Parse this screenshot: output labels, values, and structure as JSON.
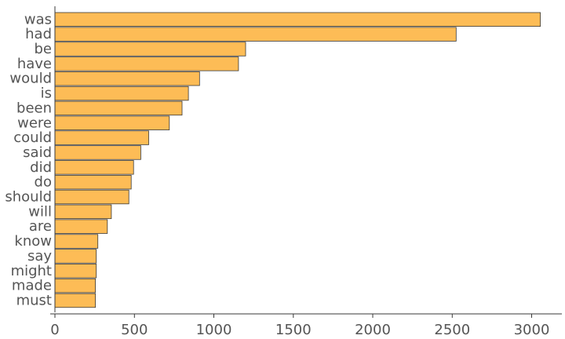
{
  "chart_data": {
    "type": "bar",
    "orientation": "horizontal",
    "title": "",
    "xlabel": "",
    "ylabel": "",
    "categories": [
      "was",
      "had",
      "be",
      "have",
      "would",
      "is",
      "been",
      "were",
      "could",
      "said",
      "did",
      "do",
      "should",
      "will",
      "are",
      "know",
      "say",
      "might",
      "made",
      "must"
    ],
    "values": [
      3055,
      2525,
      1200,
      1155,
      910,
      840,
      800,
      720,
      590,
      540,
      495,
      480,
      465,
      355,
      330,
      270,
      260,
      260,
      255,
      255
    ],
    "xlim": [
      0,
      3200
    ],
    "xticks": [
      "0",
      "500",
      "1000",
      "1500",
      "2000",
      "2500",
      "3000"
    ],
    "grid": false,
    "legend": "none",
    "colors": {
      "bar_fill": "#fdbc56",
      "bar_stroke": "#3a3a3a",
      "axis": "#3a3a3a",
      "label": "#555555"
    }
  }
}
